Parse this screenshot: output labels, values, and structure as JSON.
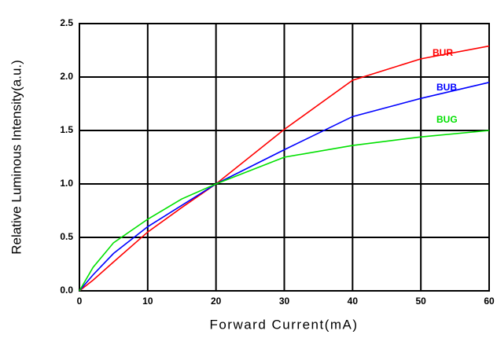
{
  "chart_data": {
    "type": "line",
    "x_label": "Forward Current(mA)",
    "y_label": "Relative Luminous Intensity(a.u.)",
    "x": [
      0,
      2,
      5,
      10,
      15,
      20,
      30,
      40,
      50,
      60
    ],
    "series": [
      {
        "name": "BUR",
        "color": "#ff0000",
        "values": [
          0,
          0.1,
          0.27,
          0.55,
          0.78,
          1.0,
          1.51,
          1.97,
          2.17,
          2.29
        ]
      },
      {
        "name": "BUB",
        "color": "#0000ff",
        "values": [
          0,
          0.15,
          0.35,
          0.6,
          0.8,
          1.0,
          1.32,
          1.63,
          1.8,
          1.95
        ]
      },
      {
        "name": "BUG",
        "color": "#00e000",
        "values": [
          0,
          0.22,
          0.45,
          0.67,
          0.86,
          1.0,
          1.25,
          1.36,
          1.44,
          1.5
        ]
      }
    ],
    "xlim": [
      0,
      60
    ],
    "xticks": [
      0,
      10,
      20,
      30,
      40,
      50,
      60
    ],
    "ylim": [
      0,
      2.5
    ],
    "yticks": [
      {
        "value": 0,
        "label": "0.0"
      },
      0.5,
      {
        "value": 1,
        "label": "1.0"
      },
      1.5,
      {
        "value": 2,
        "label": "2.0"
      },
      2.5
    ],
    "grid": true
  }
}
